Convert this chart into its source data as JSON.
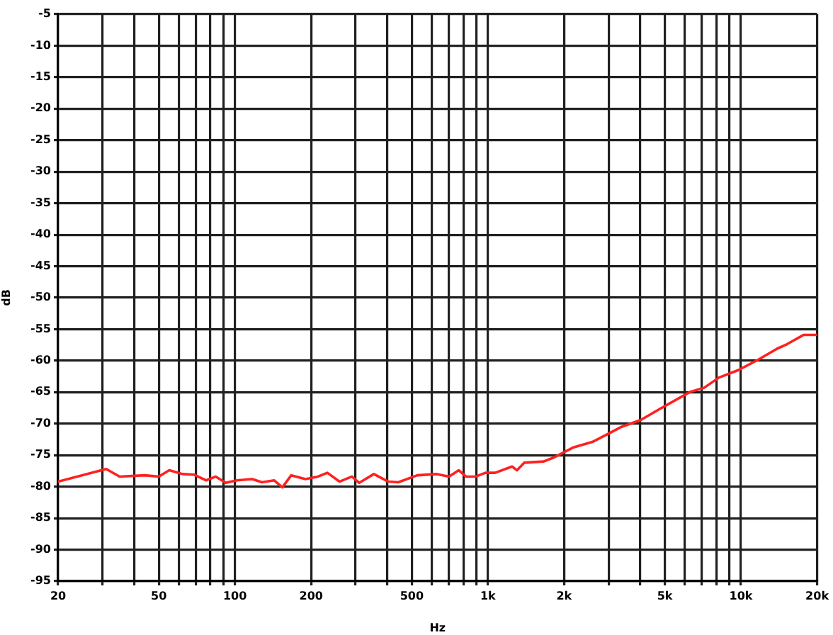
{
  "chart_data": {
    "type": "line",
    "xlabel": "Hz",
    "ylabel": "dB",
    "log": "x",
    "grid": true,
    "xlim": [
      20,
      20000
    ],
    "xticks": [
      20,
      {
        "value": 30,
        "label": null
      },
      {
        "value": 40,
        "label": null
      },
      50,
      {
        "value": 60,
        "label": null
      },
      {
        "value": 70,
        "label": null
      },
      {
        "value": 80,
        "label": null
      },
      {
        "value": 90,
        "label": null
      },
      100,
      200,
      {
        "value": 300,
        "label": null
      },
      {
        "value": 400,
        "label": null
      },
      500,
      {
        "value": 600,
        "label": null
      },
      {
        "value": 700,
        "label": null
      },
      {
        "value": 800,
        "label": null
      },
      {
        "value": 900,
        "label": null
      },
      {
        "value": 1000,
        "label": "1k"
      },
      {
        "value": 2000,
        "label": "2k"
      },
      {
        "value": 3000,
        "label": null
      },
      {
        "value": 4000,
        "label": null
      },
      {
        "value": 5000,
        "label": "5k"
      },
      {
        "value": 6000,
        "label": null
      },
      {
        "value": 7000,
        "label": null
      },
      {
        "value": 8000,
        "label": null
      },
      {
        "value": 9000,
        "label": null
      },
      {
        "value": 10000,
        "label": "10k"
      },
      {
        "value": 20000,
        "label": "20k"
      }
    ],
    "ylim": [
      -95,
      -5
    ],
    "yticks": [
      -5,
      -10,
      -15,
      -20,
      -25,
      -30,
      -35,
      -40,
      -45,
      -50,
      -55,
      -60,
      -65,
      -70,
      -75,
      -80,
      -85,
      -90,
      -95
    ],
    "color": "#ff2020",
    "x": [
      20,
      31,
      35,
      44,
      50,
      55,
      62,
      69,
      77,
      84,
      92,
      102,
      117,
      128,
      143,
      154,
      167,
      190,
      213,
      232,
      259,
      290,
      310,
      354,
      404,
      442,
      526,
      629,
      702,
      767,
      819,
      895,
      978,
      1068,
      1246,
      1303,
      1391,
      1662,
      1815,
      2167,
      2588,
      3090,
      3376,
      4024,
      4806,
      6268,
      7158,
      8178,
      9763,
      11641,
      13899,
      15186,
      17721,
      20000
    ],
    "values": [
      -79.2,
      -77.2,
      -78.4,
      -78.2,
      -78.4,
      -77.4,
      -78.0,
      -78.1,
      -79.0,
      -78.4,
      -79.4,
      -79.0,
      -78.8,
      -79.3,
      -79.0,
      -80.1,
      -78.2,
      -78.8,
      -78.4,
      -77.8,
      -79.2,
      -78.4,
      -79.4,
      -78.0,
      -79.2,
      -79.3,
      -78.2,
      -78.0,
      -78.4,
      -77.4,
      -78.4,
      -78.4,
      -77.8,
      -77.8,
      -76.8,
      -77.4,
      -76.2,
      -76.0,
      -75.4,
      -73.8,
      -72.9,
      -71.3,
      -70.5,
      -69.4,
      -67.6,
      -65.0,
      -64.3,
      -62.7,
      -61.5,
      -59.9,
      -58.1,
      -57.4,
      -55.9,
      -55.9
    ]
  }
}
